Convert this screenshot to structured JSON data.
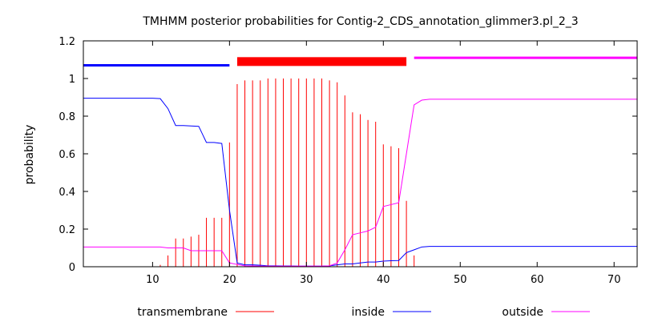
{
  "chart_data": {
    "type": "line",
    "title": "TMHMM posterior probabilities for Contig-2_CDS_annotation_glimmer3.pl_2_3",
    "xlabel": "",
    "ylabel": "probability",
    "xlim": [
      1,
      73
    ],
    "ylim": [
      0,
      1.2
    ],
    "x_ticks": [
      10,
      20,
      30,
      40,
      50,
      60,
      70
    ],
    "y_ticks": [
      0,
      0.2,
      0.4,
      0.6,
      0.8,
      1,
      1.2
    ],
    "y_tick_labels": [
      "0",
      "0.2",
      "0.4",
      "0.6",
      "0.8",
      "1",
      "1.2"
    ],
    "grid": false,
    "legend_position": "bottom",
    "colors": {
      "transmembrane": "#ff0000",
      "inside": "#0000ff",
      "outside": "#ff00ff"
    },
    "topology_bars": [
      {
        "label": "inside",
        "start": 1,
        "end": 20,
        "level": 1.07,
        "color": "#0000ff"
      },
      {
        "label": "transmembrane",
        "start": 21,
        "end": 43,
        "level": 1.09,
        "color": "#ff0000"
      },
      {
        "label": "outside",
        "start": 44,
        "end": 73,
        "level": 1.11,
        "color": "#ff00ff"
      }
    ],
    "x": [
      1,
      2,
      3,
      4,
      5,
      6,
      7,
      8,
      9,
      10,
      11,
      12,
      13,
      14,
      15,
      16,
      17,
      18,
      19,
      20,
      21,
      22,
      23,
      24,
      25,
      26,
      27,
      28,
      29,
      30,
      31,
      32,
      33,
      34,
      35,
      36,
      37,
      38,
      39,
      40,
      41,
      42,
      43,
      44,
      45,
      46,
      47,
      48,
      49,
      50,
      51,
      52,
      53,
      54,
      55,
      56,
      57,
      58,
      59,
      60,
      61,
      62,
      63,
      64,
      65,
      66,
      67,
      68,
      69,
      70,
      71,
      72,
      73
    ],
    "series": [
      {
        "name": "transmembrane",
        "style": "impulses",
        "values": [
          0,
          0,
          0,
          0,
          0,
          0,
          0,
          0,
          0,
          0,
          0.01,
          0.06,
          0.15,
          0.15,
          0.16,
          0.17,
          0.26,
          0.26,
          0.26,
          0.66,
          0.97,
          0.99,
          0.99,
          0.99,
          1.0,
          1.0,
          1.0,
          1.0,
          1.0,
          1.0,
          1.0,
          1.0,
          0.99,
          0.98,
          0.91,
          0.82,
          0.81,
          0.78,
          0.77,
          0.65,
          0.64,
          0.63,
          0.35,
          0.06,
          0,
          0,
          0,
          0,
          0,
          0,
          0,
          0,
          0,
          0,
          0,
          0,
          0,
          0,
          0,
          0,
          0,
          0,
          0,
          0,
          0,
          0,
          0,
          0,
          0,
          0,
          0,
          0,
          0
        ]
      },
      {
        "name": "inside",
        "style": "line",
        "values": [
          0.895,
          0.895,
          0.895,
          0.895,
          0.895,
          0.895,
          0.895,
          0.895,
          0.895,
          0.895,
          0.893,
          0.84,
          0.75,
          0.75,
          0.748,
          0.746,
          0.66,
          0.66,
          0.655,
          0.3,
          0.02,
          0.01,
          0.01,
          0.008,
          0.005,
          0.005,
          0.004,
          0.004,
          0.003,
          0.003,
          0.003,
          0.003,
          0.005,
          0.01,
          0.015,
          0.015,
          0.02,
          0.025,
          0.025,
          0.03,
          0.032,
          0.033,
          0.075,
          0.09,
          0.105,
          0.108,
          0.108,
          0.108,
          0.108,
          0.108,
          0.108,
          0.108,
          0.108,
          0.108,
          0.108,
          0.108,
          0.108,
          0.108,
          0.108,
          0.108,
          0.108,
          0.108,
          0.108,
          0.108,
          0.108,
          0.108,
          0.108,
          0.108,
          0.108,
          0.108,
          0.108,
          0.108,
          0.108
        ]
      },
      {
        "name": "outside",
        "style": "line",
        "values": [
          0.105,
          0.105,
          0.105,
          0.105,
          0.105,
          0.105,
          0.105,
          0.105,
          0.105,
          0.105,
          0.105,
          0.1,
          0.1,
          0.1,
          0.085,
          0.085,
          0.085,
          0.085,
          0.085,
          0.02,
          0.012,
          0.005,
          0.004,
          0.003,
          0.003,
          0.003,
          0.003,
          0.003,
          0.003,
          0.003,
          0.003,
          0.003,
          0.005,
          0.02,
          0.09,
          0.17,
          0.18,
          0.19,
          0.21,
          0.32,
          0.33,
          0.34,
          0.6,
          0.86,
          0.885,
          0.89,
          0.89,
          0.89,
          0.89,
          0.89,
          0.89,
          0.89,
          0.89,
          0.89,
          0.89,
          0.89,
          0.89,
          0.89,
          0.89,
          0.89,
          0.89,
          0.89,
          0.89,
          0.89,
          0.89,
          0.89,
          0.89,
          0.89,
          0.89,
          0.89,
          0.89,
          0.89,
          0.89
        ]
      }
    ]
  }
}
